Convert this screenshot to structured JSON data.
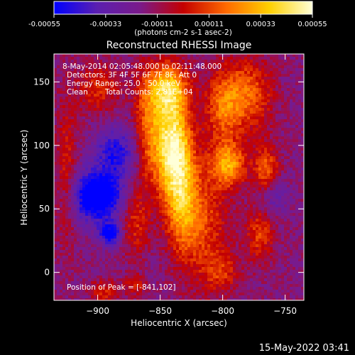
{
  "chart_data": {
    "type": "heatmap",
    "title": "Reconstructed RHESSI Image",
    "xlabel": "Heliocentric X (arcsec)",
    "ylabel": "Heliocentric Y (arcsec)",
    "xlim": [
      -935,
      -735
    ],
    "ylim": [
      -22,
      172
    ],
    "x_ticks": [
      -900,
      -850,
      -800,
      -750
    ],
    "y_ticks": [
      0,
      50,
      100,
      150
    ],
    "colorbar": {
      "ticks": [
        -0.00055,
        -0.00033,
        -0.00011,
        0.00011,
        0.00033,
        0.00055
      ],
      "tick_labels": [
        "-0.00055",
        "-0.00033",
        "-0.00011",
        "0.00011",
        "0.00033",
        "0.00055"
      ],
      "range": [
        -0.00055,
        0.00055
      ],
      "unit_label": "(photons cm-2 s-1 asec-2)",
      "colors": [
        "#0000ff",
        "#5b1fb0",
        "#7a1a8a",
        "#c40000",
        "#ff6a00",
        "#ffd000",
        "#ffffd8"
      ]
    },
    "peak": {
      "x": -841,
      "y": 102
    },
    "annotations": {
      "time_range": "8-May-2014 02:05:48.000 to 02:11:48.000",
      "detectors": "Detectors: 3F 4F 5F 6F 7F 8F, Att 0",
      "energy_range": "Energy Range: 25.0 - 50.0 keV",
      "algorithm": "Clean",
      "total_counts": "Total Counts: 2.81E+04",
      "peak_label": "Position of Peak = [-841,102]"
    },
    "sources": [
      {
        "x": -840,
        "y": 100,
        "sx": 10,
        "sy": 28,
        "amp": 1.0
      },
      {
        "x": -845,
        "y": 145,
        "sx": 12,
        "sy": 14,
        "amp": 0.7
      },
      {
        "x": -860,
        "y": 110,
        "sx": 8,
        "sy": 30,
        "amp": 0.45
      },
      {
        "x": -833,
        "y": 55,
        "sx": 9,
        "sy": 28,
        "amp": 0.55
      },
      {
        "x": -815,
        "y": 40,
        "sx": 14,
        "sy": 35,
        "amp": 0.4
      },
      {
        "x": -795,
        "y": 85,
        "sx": 10,
        "sy": 12,
        "amp": 0.65
      },
      {
        "x": -800,
        "y": 130,
        "sx": 10,
        "sy": 20,
        "amp": 0.45
      },
      {
        "x": -780,
        "y": 140,
        "sx": 14,
        "sy": 20,
        "amp": 0.5
      },
      {
        "x": -765,
        "y": 80,
        "sx": 7,
        "sy": 14,
        "amp": 0.5
      },
      {
        "x": -770,
        "y": 30,
        "sx": 8,
        "sy": 15,
        "amp": 0.4
      },
      {
        "x": -900,
        "y": 145,
        "sx": 12,
        "sy": 14,
        "amp": 0.35
      },
      {
        "x": -925,
        "y": 80,
        "sx": 6,
        "sy": 40,
        "amp": 0.3
      },
      {
        "x": -870,
        "y": 40,
        "sx": 8,
        "sy": 18,
        "amp": 0.35
      },
      {
        "x": -895,
        "y": -15,
        "sx": 8,
        "sy": 6,
        "amp": 0.35
      },
      {
        "x": -800,
        "y": 0,
        "sx": 10,
        "sy": 10,
        "amp": 0.3
      },
      {
        "x": -870,
        "y": -10,
        "sx": 6,
        "sy": 6,
        "amp": 0.3
      },
      {
        "x": -900,
        "y": 60,
        "sx": 14,
        "sy": 14,
        "amp": -0.9
      },
      {
        "x": -885,
        "y": 95,
        "sx": 12,
        "sy": 14,
        "amp": -0.5
      },
      {
        "x": -890,
        "y": 30,
        "sx": 6,
        "sy": 6,
        "amp": -0.7
      },
      {
        "x": -760,
        "y": 60,
        "sx": 8,
        "sy": 10,
        "amp": -0.3
      }
    ]
  },
  "footer": {
    "timestamp": "15-May-2022 03:41"
  }
}
